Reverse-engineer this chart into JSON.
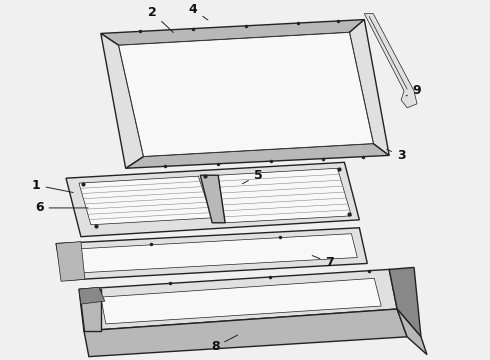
{
  "bg_color": "#f0f0f0",
  "line_color": "#222222",
  "fill_white": "#f8f8f8",
  "fill_light": "#e0e0e0",
  "fill_mid": "#b8b8b8",
  "fill_dark": "#888888",
  "fill_vdark": "#555555",
  "label_color": "#111111",
  "label_fontsize": 9,
  "lw_main": 1.0,
  "lw_thin": 0.5,
  "lw_thick": 1.5
}
